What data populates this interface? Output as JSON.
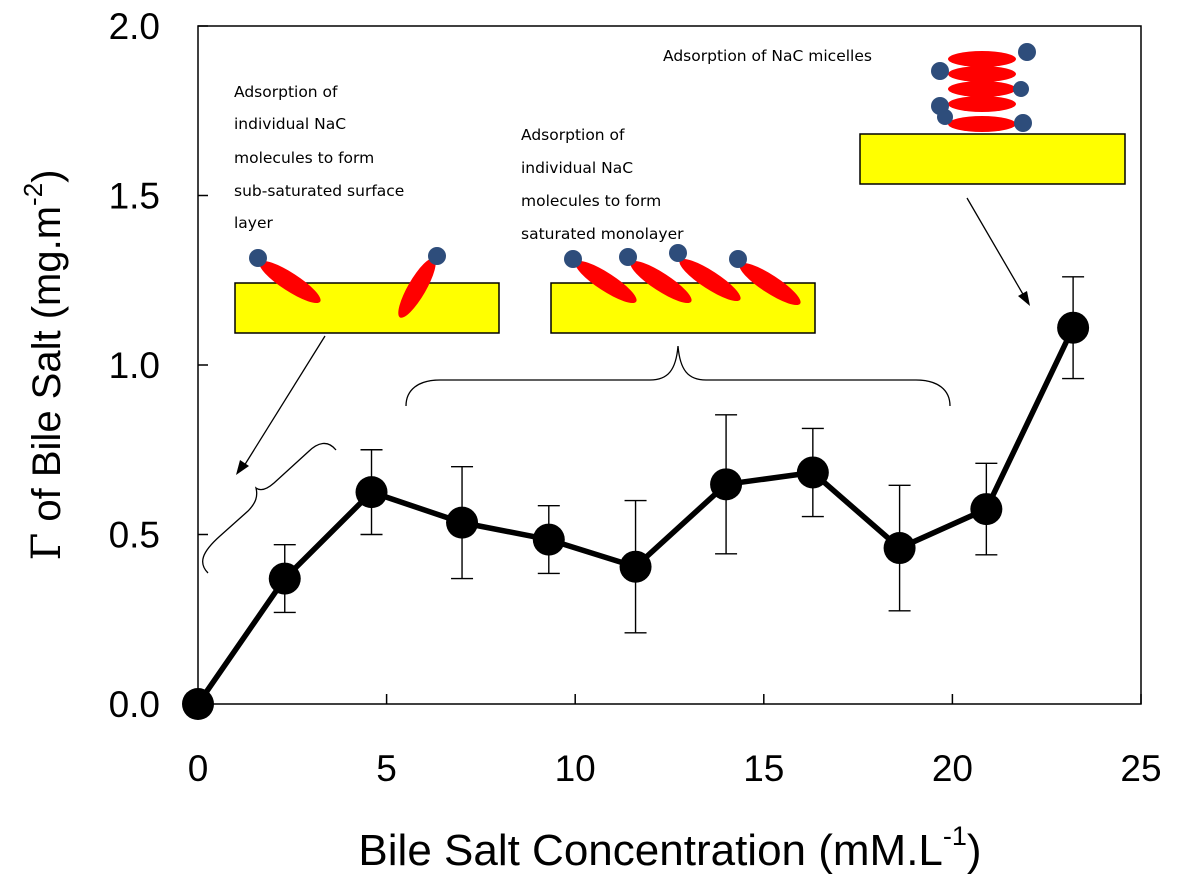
{
  "chart_data": {
    "type": "line",
    "xlabel": "Bile Salt Concentration (mM.L",
    "xlabel_sup": "-1",
    "xlabel_end": ")",
    "ylabel_symbol": "Γ",
    "ylabel": " of Bile Salt (mg.m",
    "ylabel_sup": "-2",
    "ylabel_end": ")",
    "xlim": [
      0,
      25
    ],
    "ylim": [
      0,
      2.0
    ],
    "x_ticks": [
      0,
      5,
      10,
      15,
      20,
      25
    ],
    "x_tick_labels": [
      "0",
      "5",
      "10",
      "15",
      "20",
      "25"
    ],
    "y_ticks": [
      0,
      0.5,
      1.0,
      1.5,
      2.0
    ],
    "y_tick_labels": [
      "0.0",
      "0.5",
      "1.0",
      "1.5",
      "2.0"
    ],
    "grid": false,
    "legend": "none",
    "series": [
      {
        "x": [
          0,
          2.3,
          4.6,
          7.0,
          9.3,
          11.6,
          14.0,
          16.3,
          18.6,
          20.9,
          23.2
        ],
        "y": [
          0.0,
          0.37,
          0.625,
          0.535,
          0.485,
          0.405,
          0.648,
          0.683,
          0.46,
          0.575,
          1.11
        ],
        "error": [
          0,
          0.1,
          0.125,
          0.165,
          0.1,
          0.195,
          0.205,
          0.13,
          0.185,
          0.135,
          0.15
        ],
        "color": "#000000"
      }
    ],
    "annotations": [
      {
        "lines": [
          "Adsorption of",
          "individual NaC",
          "molecules to form",
          "sub-saturated surface",
          "layer"
        ]
      },
      {
        "lines": [
          "Adsorption of",
          "individual NaC",
          "molecules to form",
          "saturated monolayer"
        ]
      },
      {
        "lines": [
          "Adsorption of NaC micelles"
        ]
      }
    ],
    "colors": {
      "surface": "#FFFF00",
      "tail": "#FF0000",
      "head": "#2E4D7B"
    }
  }
}
